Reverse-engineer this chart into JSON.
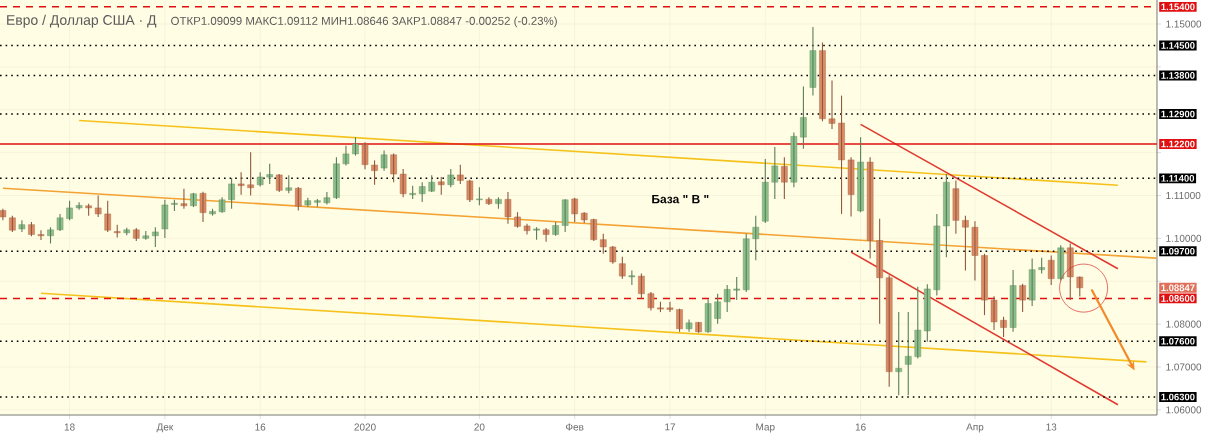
{
  "chart_data": {
    "type": "candlestick",
    "title": "Евро / Доллар США · Д",
    "subtitle": "ОТКР1.09099 МАКС1.09112 МИН1.08646 ЗАКР1.08847 -0.00252 (-0.23%)",
    "categories": [
      null,
      null,
      null,
      null,
      null,
      null,
      null,
      "18",
      null,
      null,
      null,
      null,
      null,
      null,
      null,
      null,
      null,
      "Дек",
      null,
      null,
      null,
      null,
      null,
      null,
      null,
      null,
      null,
      "16",
      null,
      null,
      null,
      null,
      null,
      null,
      null,
      null,
      null,
      null,
      "2020",
      null,
      null,
      null,
      null,
      null,
      null,
      null,
      null,
      null,
      null,
      null,
      "20",
      null,
      null,
      null,
      null,
      null,
      null,
      null,
      null,
      null,
      "Фев",
      null,
      null,
      null,
      null,
      null,
      null,
      null,
      null,
      null,
      "17",
      null,
      null,
      null,
      null,
      null,
      null,
      null,
      null,
      null,
      "Мар",
      null,
      null,
      null,
      null,
      null,
      null,
      null,
      null,
      null,
      "16",
      null,
      null,
      null,
      null,
      null,
      null,
      null,
      null,
      null,
      null,
      null,
      "Апр",
      null,
      null,
      null,
      null,
      null,
      null,
      null,
      "13",
      null,
      null,
      null,
      null,
      null,
      null,
      null,
      null,
      null,
      null,
      null
    ],
    "ohlc": [
      [
        1.1065,
        1.1069,
        1.1042,
        1.105
      ],
      [
        1.1048,
        1.1053,
        1.1015,
        1.1019
      ],
      [
        1.1022,
        1.1042,
        1.1015,
        1.1032
      ],
      [
        1.1032,
        1.1038,
        1.1005,
        1.1009
      ],
      [
        1.1009,
        1.1019,
        1.0996,
        1.1006
      ],
      [
        1.1006,
        1.1026,
        1.0988,
        1.102
      ],
      [
        1.102,
        1.1057,
        1.1017,
        1.1048
      ],
      [
        1.1046,
        1.1088,
        1.1042,
        1.1071
      ],
      [
        1.1071,
        1.1084,
        1.1067,
        1.1077
      ],
      [
        1.1076,
        1.1081,
        1.1053,
        1.1071
      ],
      [
        1.1071,
        1.11,
        1.105,
        1.1057
      ],
      [
        1.1057,
        1.1088,
        1.1015,
        1.1019
      ],
      [
        1.1016,
        1.1032,
        1.1002,
        1.1013
      ],
      [
        1.1013,
        1.1025,
        1.1007,
        1.102
      ],
      [
        1.102,
        1.1024,
        1.0994,
        1.1
      ],
      [
        1.1,
        1.1017,
        1.0997,
        1.1006
      ],
      [
        1.1006,
        1.1026,
        1.098,
        1.1015
      ],
      [
        1.1022,
        1.109,
        1.1001,
        1.1078
      ],
      [
        1.1079,
        1.109,
        1.1064,
        1.1082
      ],
      [
        1.1081,
        1.1116,
        1.1069,
        1.1076
      ],
      [
        1.1076,
        1.1106,
        1.1073,
        1.1104
      ],
      [
        1.1105,
        1.1109,
        1.1038,
        1.106
      ],
      [
        1.1057,
        1.1069,
        1.1053,
        1.1063
      ],
      [
        1.1062,
        1.1096,
        1.106,
        1.109
      ],
      [
        1.109,
        1.1141,
        1.1069,
        1.1127
      ],
      [
        1.1127,
        1.1154,
        1.1102,
        1.1123
      ],
      [
        1.1125,
        1.1201,
        1.11,
        1.1118
      ],
      [
        1.1125,
        1.1154,
        1.1121,
        1.1143
      ],
      [
        1.1143,
        1.1174,
        1.1127,
        1.1149
      ],
      [
        1.1148,
        1.115,
        1.1108,
        1.1112
      ],
      [
        1.1112,
        1.1147,
        1.1105,
        1.1118
      ],
      [
        1.1117,
        1.112,
        1.1065,
        1.1075
      ],
      [
        1.1078,
        1.1095,
        1.1074,
        1.1088
      ],
      [
        1.1084,
        1.1092,
        1.1074,
        1.1088
      ],
      [
        1.1083,
        1.1108,
        1.1079,
        1.1095
      ],
      [
        1.1095,
        1.1189,
        1.1092,
        1.1174
      ],
      [
        1.1174,
        1.1216,
        1.117,
        1.1197
      ],
      [
        1.1197,
        1.1236,
        1.1193,
        1.122
      ],
      [
        1.1219,
        1.1224,
        1.1161,
        1.1172
      ],
      [
        1.1171,
        1.1182,
        1.1125,
        1.1158
      ],
      [
        1.1164,
        1.1205,
        1.1158,
        1.1195
      ],
      [
        1.1195,
        1.1198,
        1.1131,
        1.115
      ],
      [
        1.115,
        1.1162,
        1.1096,
        1.1104
      ],
      [
        1.1102,
        1.1123,
        1.1092,
        1.1105
      ],
      [
        1.1104,
        1.1131,
        1.1085,
        1.1121
      ],
      [
        1.111,
        1.1147,
        1.1108,
        1.1131
      ],
      [
        1.1132,
        1.1143,
        1.1102,
        1.1125
      ],
      [
        1.1125,
        1.1162,
        1.1119,
        1.1148
      ],
      [
        1.1148,
        1.1172,
        1.1127,
        1.1135
      ],
      [
        1.1134,
        1.1137,
        1.1085,
        1.109
      ],
      [
        1.109,
        1.1119,
        1.1077,
        1.1092
      ],
      [
        1.1091,
        1.1096,
        1.1078,
        1.1081
      ],
      [
        1.1081,
        1.1096,
        1.1069,
        1.1091
      ],
      [
        1.1091,
        1.1108,
        1.1034,
        1.105
      ],
      [
        1.105,
        1.1061,
        1.1025,
        1.1028
      ],
      [
        1.1029,
        1.1034,
        1.1009,
        1.1018
      ],
      [
        1.1019,
        1.1026,
        1.0997,
        1.1022
      ],
      [
        1.102,
        1.1024,
        1.0992,
        1.1009
      ],
      [
        1.1009,
        1.1038,
        1.1006,
        1.103
      ],
      [
        1.103,
        1.1091,
        1.1015,
        1.109
      ],
      [
        1.1092,
        1.1095,
        1.1038,
        1.1057
      ],
      [
        1.1059,
        1.1061,
        1.1036,
        1.1043
      ],
      [
        1.1044,
        1.1046,
        1.0994,
        1.0997
      ],
      [
        1.0997,
        1.1011,
        1.0964,
        1.098
      ],
      [
        1.098,
        1.0982,
        1.0941,
        1.0945
      ],
      [
        1.0941,
        1.0957,
        1.0906,
        1.0912
      ],
      [
        1.091,
        1.0925,
        1.0891,
        1.0913
      ],
      [
        1.0912,
        1.0918,
        1.0859,
        1.0871
      ],
      [
        1.0871,
        1.0875,
        1.0832,
        1.0838
      ],
      [
        1.0838,
        1.0852,
        1.0828,
        1.0835
      ],
      [
        1.0838,
        1.0852,
        1.0828,
        1.0834
      ],
      [
        1.0834,
        1.0836,
        1.0782,
        1.0789
      ],
      [
        1.0789,
        1.0811,
        1.0782,
        1.0803
      ],
      [
        1.0804,
        1.0805,
        1.078,
        1.0782
      ],
      [
        1.0782,
        1.0858,
        1.078,
        1.0848
      ],
      [
        1.0813,
        1.0871,
        1.0801,
        1.0852
      ],
      [
        1.0852,
        1.0891,
        1.0828,
        1.0881
      ],
      [
        1.0879,
        1.091,
        1.0856,
        1.0882
      ],
      [
        1.088,
        1.1011,
        1.0875,
        1.0999
      ],
      [
        1.0999,
        1.1053,
        1.0949,
        1.1026
      ],
      [
        1.104,
        1.1185,
        1.1036,
        1.1131
      ],
      [
        1.1131,
        1.1213,
        1.1092,
        1.1169
      ],
      [
        1.1168,
        1.1189,
        1.1092,
        1.1131
      ],
      [
        1.1131,
        1.1247,
        1.1119,
        1.1238
      ],
      [
        1.1236,
        1.1354,
        1.1209,
        1.1282
      ],
      [
        1.1352,
        1.1493,
        1.1333,
        1.1438
      ],
      [
        1.1438,
        1.1457,
        1.1273,
        1.1279
      ],
      [
        1.1279,
        1.1368,
        1.1255,
        1.1268
      ],
      [
        1.1269,
        1.1333,
        1.1057,
        1.1183
      ],
      [
        1.1183,
        1.1189,
        1.1051,
        1.1102
      ],
      [
        1.1064,
        1.1236,
        1.1061,
        1.1178
      ],
      [
        1.1178,
        1.1189,
        1.0953,
        1.0995
      ],
      [
        1.0995,
        1.1046,
        1.0801,
        1.0908
      ],
      [
        1.0908,
        1.0914,
        1.0654,
        1.0689
      ],
      [
        1.0689,
        1.0828,
        1.0634,
        1.0697
      ],
      [
        1.0706,
        1.0828,
        1.0634,
        1.0725
      ],
      [
        1.0724,
        1.0887,
        1.072,
        1.0786
      ],
      [
        1.0784,
        1.0893,
        1.0759,
        1.0882
      ],
      [
        1.088,
        1.1057,
        1.0867,
        1.1029
      ],
      [
        1.1029,
        1.115,
        1.0956,
        1.1131
      ],
      [
        1.1116,
        1.1135,
        1.1011,
        1.1042
      ],
      [
        1.1042,
        1.1053,
        1.0925,
        1.1026
      ],
      [
        1.1026,
        1.104,
        1.0902,
        1.096
      ],
      [
        1.096,
        1.0964,
        1.0821,
        1.0856
      ],
      [
        1.0856,
        1.0865,
        1.0786,
        1.0805
      ],
      [
        1.0809,
        1.0817,
        1.077,
        1.0792
      ],
      [
        1.0792,
        1.0926,
        1.0782,
        1.089
      ],
      [
        1.089,
        1.0894,
        1.0828,
        1.0856
      ],
      [
        1.0856,
        1.0953,
        1.0842,
        1.0927
      ],
      [
        1.0927,
        1.0955,
        1.0918,
        1.0932
      ],
      [
        1.0949,
        1.096,
        1.0891,
        1.0906
      ],
      [
        1.0906,
        1.0984,
        1.0902,
        1.0978
      ],
      [
        1.0978,
        1.0988,
        1.0856,
        1.091
      ],
      [
        1.09099,
        1.09112,
        1.08646,
        1.08847
      ],
      null,
      null,
      null,
      null,
      null,
      null,
      null,
      null
    ],
    "colors": [
      "#dc8a63",
      "#dc8a63",
      "#8cc08b",
      "#dc8a63",
      "#dc8a63",
      "#8cc08b",
      "#8cc08b",
      "#8cc08b",
      "#8cc08b",
      "#dc8a63",
      "#dc8a63",
      "#dc8a63",
      "#dc8a63",
      "#8cc08b",
      "#dc8a63",
      "#8cc08b",
      "#8cc08b",
      "#8cc08b",
      "#8cc08b",
      "#dc8a63",
      "#8cc08b",
      "#dc8a63",
      "#8cc08b",
      "#8cc08b",
      "#8cc08b",
      "#dc8a63",
      "#dc8a63",
      "#8cc08b",
      "#8cc08b",
      "#dc8a63",
      "#8cc08b",
      "#dc8a63",
      "#8cc08b",
      "#8cc08b",
      "#8cc08b",
      "#8cc08b",
      "#8cc08b",
      "#8cc08b",
      "#dc8a63",
      "#dc8a63",
      "#8cc08b",
      "#dc8a63",
      "#dc8a63",
      "#8cc08b",
      "#8cc08b",
      "#8cc08b",
      "#dc8a63",
      "#8cc08b",
      "#dc8a63",
      "#dc8a63",
      "#8cc08b",
      "#dc8a63",
      "#8cc08b",
      "#dc8a63",
      "#dc8a63",
      "#dc8a63",
      "#8cc08b",
      "#dc8a63",
      "#8cc08b",
      "#8cc08b",
      "#dc8a63",
      "#dc8a63",
      "#dc8a63",
      "#dc8a63",
      "#dc8a63",
      "#dc8a63",
      "#8cc08b",
      "#dc8a63",
      "#dc8a63",
      "#dc8a63",
      "#dc8a63",
      "#dc8a63",
      "#8cc08b",
      "#dc8a63",
      "#8cc08b",
      "#8cc08b",
      "#8cc08b",
      "#8cc08b",
      "#8cc08b",
      "#8cc08b",
      "#8cc08b",
      "#8cc08b",
      "#dc8a63",
      "#8cc08b",
      "#8cc08b",
      "#8cc08b",
      "#dc8a63",
      "#dc8a63",
      "#dc8a63",
      "#dc8a63",
      "#8cc08b",
      "#dc8a63",
      "#dc8a63",
      "#dc8a63",
      "#8cc08b",
      "#8cc08b",
      "#8cc08b",
      "#8cc08b",
      "#8cc08b",
      "#8cc08b",
      "#dc8a63",
      "#dc8a63",
      "#dc8a63",
      "#dc8a63",
      "#dc8a63",
      "#dc8a63",
      "#8cc08b",
      "#dc8a63",
      "#8cc08b",
      "#8cc08b",
      "#dc8a63",
      "#8cc08b",
      "#dc8a63",
      "#dc8a63",
      null,
      null,
      null,
      null,
      null,
      null,
      null,
      null
    ],
    "ylim": [
      1.0588,
      1.1556
    ],
    "yticks": [
      {
        "value": 1.06,
        "label": "1.06000"
      },
      {
        "value": 1.07,
        "label": "1.07000"
      },
      {
        "value": 1.08,
        "label": "1.08000"
      },
      {
        "value": 1.09,
        "label": null
      },
      {
        "value": 1.1,
        "label": "1.10000"
      },
      {
        "value": 1.11,
        "label": "1.11000"
      },
      {
        "value": 1.12,
        "label": null
      },
      {
        "value": 1.13,
        "label": null
      },
      {
        "value": 1.14,
        "label": null
      },
      {
        "value": 1.15,
        "label": "1.15000"
      }
    ],
    "grid": true,
    "series": [
      {
        "type": "line",
        "color": "#f5c21b",
        "values": [
          null,
          null,
          null,
          null,
          null,
          null,
          null,
          null,
          1.1275,
          null,
          null,
          null,
          null,
          null,
          null,
          null,
          null,
          null,
          null,
          null,
          null,
          null,
          null,
          null,
          null,
          null,
          null,
          null,
          null,
          null,
          null,
          null,
          null,
          null,
          null,
          null,
          null,
          null,
          null,
          null,
          null,
          null,
          null,
          null,
          null,
          null,
          null,
          null,
          null,
          null,
          null,
          null,
          null,
          null,
          null,
          null,
          null,
          null,
          null,
          null,
          null,
          null,
          null,
          null,
          null,
          null,
          null,
          null,
          null,
          null,
          null,
          null,
          null,
          null,
          null,
          null,
          null,
          null,
          null,
          null,
          null,
          null,
          null,
          null,
          null,
          null,
          null,
          null,
          null,
          null,
          null,
          null,
          null,
          null,
          null,
          null,
          null,
          null,
          null,
          null,
          null,
          null,
          null,
          null,
          null,
          null,
          null,
          null,
          null,
          null,
          null,
          null,
          null,
          null,
          null,
          null,
          null,
          1.1124,
          null,
          null,
          null,
          null
        ]
      },
      {
        "type": "line",
        "color": "#f3a233",
        "values": [
          1.1117,
          null,
          null,
          null,
          null,
          null,
          null,
          null,
          null,
          null,
          null,
          null,
          null,
          null,
          null,
          null,
          null,
          null,
          null,
          null,
          null,
          null,
          null,
          null,
          null,
          null,
          null,
          null,
          null,
          null,
          null,
          null,
          null,
          null,
          null,
          null,
          null,
          null,
          null,
          null,
          null,
          null,
          null,
          null,
          null,
          null,
          null,
          null,
          null,
          null,
          null,
          null,
          null,
          null,
          null,
          null,
          null,
          null,
          null,
          null,
          null,
          null,
          null,
          null,
          null,
          null,
          null,
          null,
          null,
          null,
          null,
          null,
          null,
          null,
          null,
          null,
          null,
          null,
          null,
          null,
          null,
          null,
          null,
          null,
          null,
          null,
          null,
          null,
          null,
          null,
          null,
          null,
          null,
          null,
          null,
          null,
          null,
          null,
          null,
          null,
          null,
          null,
          null,
          null,
          null,
          null,
          null,
          null,
          null,
          null,
          null,
          null,
          null,
          null,
          null,
          null,
          null,
          null,
          null,
          null,
          null,
          1.0954
        ]
      },
      {
        "type": "line",
        "color": "#f5c21b",
        "values": [
          null,
          null,
          null,
          null,
          1.0872,
          null,
          null,
          null,
          null,
          null,
          null,
          null,
          null,
          null,
          null,
          null,
          null,
          null,
          null,
          null,
          null,
          null,
          null,
          null,
          null,
          null,
          null,
          null,
          null,
          null,
          null,
          null,
          null,
          null,
          null,
          null,
          null,
          null,
          null,
          null,
          null,
          null,
          null,
          null,
          null,
          null,
          null,
          null,
          null,
          null,
          null,
          null,
          null,
          null,
          null,
          null,
          null,
          null,
          null,
          null,
          null,
          null,
          null,
          null,
          null,
          null,
          null,
          null,
          null,
          null,
          null,
          null,
          null,
          null,
          null,
          null,
          null,
          null,
          null,
          null,
          null,
          null,
          null,
          null,
          null,
          null,
          null,
          null,
          null,
          null,
          null,
          null,
          null,
          null,
          null,
          null,
          null,
          null,
          null,
          null,
          null,
          null,
          null,
          null,
          null,
          null,
          null,
          null,
          null,
          null,
          null,
          null,
          null,
          null,
          null,
          null,
          null,
          null,
          null,
          null,
          1.0712,
          null
        ]
      },
      {
        "type": "line",
        "color": "#e03a30",
        "values": [
          null,
          null,
          null,
          null,
          null,
          null,
          null,
          null,
          null,
          null,
          null,
          null,
          null,
          null,
          null,
          null,
          null,
          null,
          null,
          null,
          null,
          null,
          null,
          null,
          null,
          null,
          null,
          null,
          null,
          null,
          null,
          null,
          null,
          null,
          null,
          null,
          null,
          null,
          null,
          null,
          null,
          null,
          null,
          null,
          null,
          null,
          null,
          null,
          null,
          null,
          null,
          null,
          null,
          null,
          null,
          null,
          null,
          null,
          null,
          null,
          null,
          null,
          null,
          null,
          null,
          null,
          null,
          null,
          null,
          null,
          null,
          null,
          null,
          null,
          null,
          null,
          null,
          null,
          null,
          null,
          null,
          null,
          null,
          null,
          null,
          null,
          null,
          null,
          null,
          null,
          1.1266,
          null,
          null,
          null,
          null,
          null,
          null,
          null,
          null,
          null,
          null,
          null,
          null,
          null,
          null,
          null,
          null,
          null,
          null,
          null,
          null,
          null,
          null,
          null,
          null,
          null,
          null,
          1.0929,
          null,
          null,
          null,
          null
        ]
      },
      {
        "type": "line",
        "color": "#e03a30",
        "values": [
          null,
          null,
          null,
          null,
          null,
          null,
          null,
          null,
          null,
          null,
          null,
          null,
          null,
          null,
          null,
          null,
          null,
          null,
          null,
          null,
          null,
          null,
          null,
          null,
          null,
          null,
          null,
          null,
          null,
          null,
          null,
          null,
          null,
          null,
          null,
          null,
          null,
          null,
          null,
          null,
          null,
          null,
          null,
          null,
          null,
          null,
          null,
          null,
          null,
          null,
          null,
          null,
          null,
          null,
          null,
          null,
          null,
          null,
          null,
          null,
          null,
          null,
          null,
          null,
          null,
          null,
          null,
          null,
          null,
          null,
          null,
          null,
          null,
          null,
          null,
          null,
          null,
          null,
          null,
          null,
          null,
          null,
          null,
          null,
          null,
          null,
          null,
          null,
          null,
          1.0968,
          null,
          null,
          null,
          null,
          null,
          null,
          null,
          null,
          null,
          null,
          null,
          null,
          null,
          null,
          null,
          null,
          null,
          null,
          null,
          null,
          null,
          null,
          null,
          null,
          null,
          null,
          null,
          1.0612,
          null,
          null,
          null,
          null
        ]
      }
    ],
    "ref_lines": [
      {
        "axis": "y",
        "value": 1.154,
        "label": "1.15400",
        "color": "#e01010",
        "line_style": "dashed"
      },
      {
        "axis": "y",
        "value": 1.145,
        "label": "1.14500",
        "color": "#000000",
        "line_style": "dotted"
      },
      {
        "axis": "y",
        "value": 1.138,
        "label": "1.13800",
        "color": "#000000",
        "line_style": "dotted"
      },
      {
        "axis": "y",
        "value": 1.129,
        "label": "1.12900",
        "color": "#000000",
        "line_style": "dotted"
      },
      {
        "axis": "y",
        "value": 1.122,
        "label": "1.12200",
        "color": "#e01010",
        "line_style": "solid"
      },
      {
        "axis": "y",
        "value": 1.114,
        "label": "1.11400",
        "color": "#000000",
        "line_style": "dotted"
      },
      {
        "axis": "y",
        "value": 1.097,
        "label": "1.09700",
        "color": "#000000",
        "line_style": "dotted"
      },
      {
        "axis": "y",
        "value": 1.086,
        "label": "1.08600",
        "color": "#e01010",
        "line_style": "dashed"
      },
      {
        "axis": "y",
        "value": 1.076,
        "label": "1.07600",
        "color": "#000000",
        "line_style": "dotted"
      },
      {
        "axis": "y",
        "value": 1.063,
        "label": "1.06300",
        "color": "#000000",
        "line_style": "dotted"
      }
    ],
    "annotations": [
      "База  \" В \"",
      "1.08847"
    ]
  }
}
